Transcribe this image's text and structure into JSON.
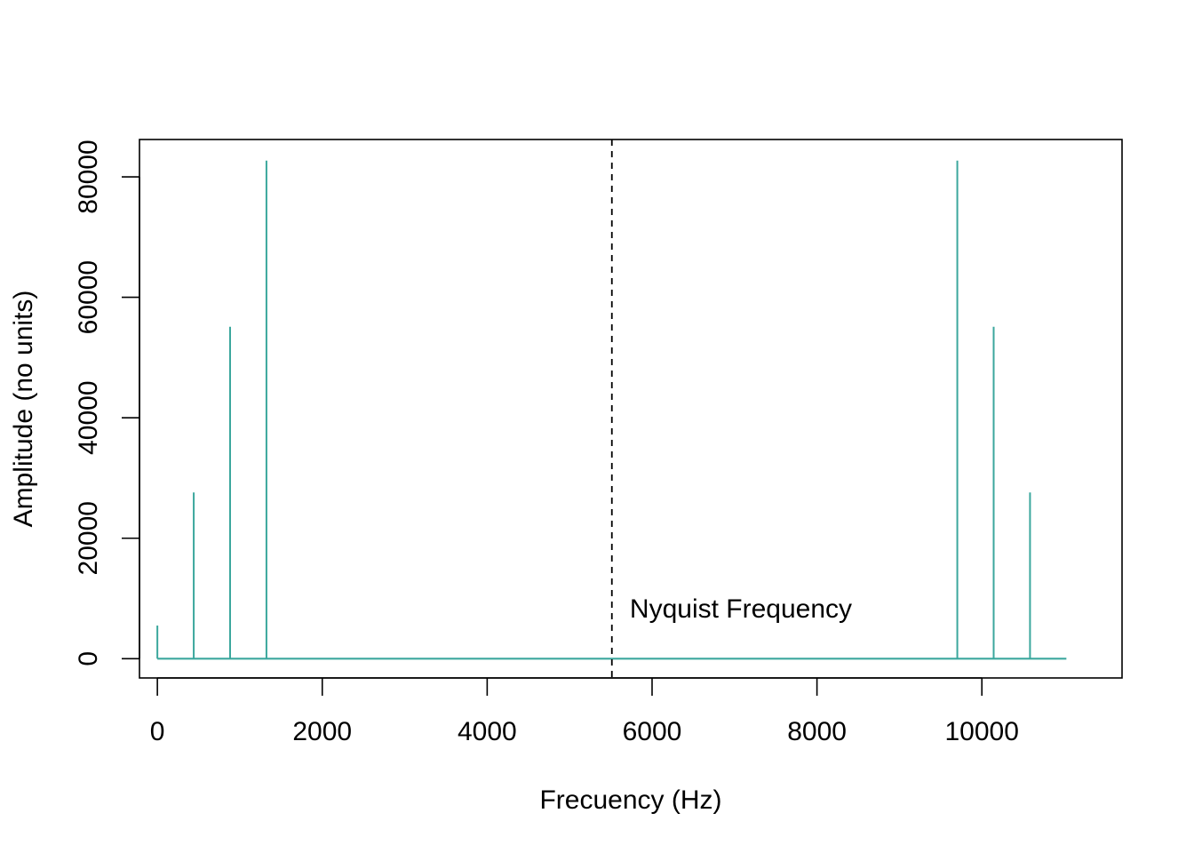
{
  "chart_data": {
    "type": "line",
    "title": "",
    "xlabel": "Frecuency (Hz)",
    "ylabel": "Amplitude (no units)",
    "xlim": [
      -217,
      11700
    ],
    "ylim": [
      -3200,
      86200
    ],
    "x_ticks": [
      0,
      2000,
      4000,
      6000,
      8000,
      10000
    ],
    "x_tick_labels": [
      "0",
      "2000",
      "4000",
      "6000",
      "8000",
      "10000"
    ],
    "y_ticks": [
      0,
      20000,
      40000,
      60000,
      80000
    ],
    "y_tick_labels": [
      "0",
      "20000",
      "40000",
      "60000",
      "80000"
    ],
    "grid": false,
    "series": [
      {
        "color": "#3ba79d",
        "points": [
          {
            "x": 0,
            "y": 5500
          },
          {
            "x": 441,
            "y": 27600
          },
          {
            "x": 882,
            "y": 55100
          },
          {
            "x": 1323,
            "y": 82700
          },
          {
            "x": 9702,
            "y": 82700
          },
          {
            "x": 10143,
            "y": 55100
          },
          {
            "x": 10584,
            "y": 27600
          }
        ],
        "x_end": 11025
      }
    ],
    "reference_line": {
      "x": 5512.5,
      "style": "dashed",
      "color": "#000000"
    },
    "annotations": [
      {
        "text": "Nyquist Frequency",
        "x": 5730,
        "y": 8300
      }
    ]
  }
}
